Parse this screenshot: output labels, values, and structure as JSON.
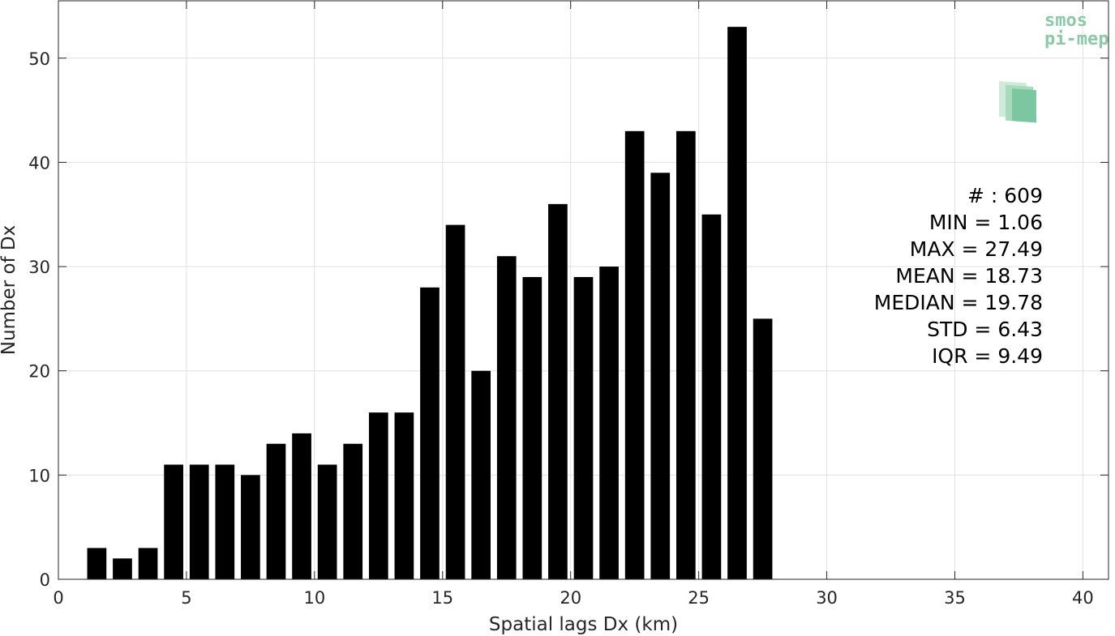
{
  "chart_data": {
    "type": "bar",
    "title": "",
    "xlabel": "Spatial lags Dx (km)",
    "ylabel": "Number of Dx",
    "xlim": [
      0,
      41
    ],
    "ylim": [
      0,
      55.5
    ],
    "xticks": [
      0,
      5,
      10,
      15,
      20,
      25,
      30,
      35,
      40
    ],
    "yticks": [
      0,
      10,
      20,
      30,
      40,
      50
    ],
    "grid": true,
    "bar_color": "#000000",
    "bar_width": 0.75,
    "x": [
      1.5,
      2.5,
      3.5,
      4.5,
      5.5,
      6.5,
      7.5,
      8.5,
      9.5,
      10.5,
      11.5,
      12.5,
      13.5,
      14.5,
      15.5,
      16.5,
      17.5,
      18.5,
      19.5,
      20.5,
      21.5,
      22.5,
      23.5,
      24.5,
      25.5,
      26.5,
      27.5
    ],
    "values": [
      3,
      2,
      3,
      11,
      11,
      11,
      10,
      13,
      14,
      11,
      13,
      16,
      16,
      28,
      34,
      20,
      31,
      29,
      36,
      29,
      30,
      43,
      39,
      43,
      35,
      53,
      25
    ],
    "stats": [
      "# : 609",
      "MIN = 1.06",
      "MAX =  27.49",
      "MEAN = 18.73",
      "MEDIAN = 19.78",
      "STD = 6.43",
      "IQR = 9.49"
    ],
    "logo": {
      "line1": "smos",
      "line2": "pi-mep",
      "color": "#8cc9a8"
    }
  }
}
